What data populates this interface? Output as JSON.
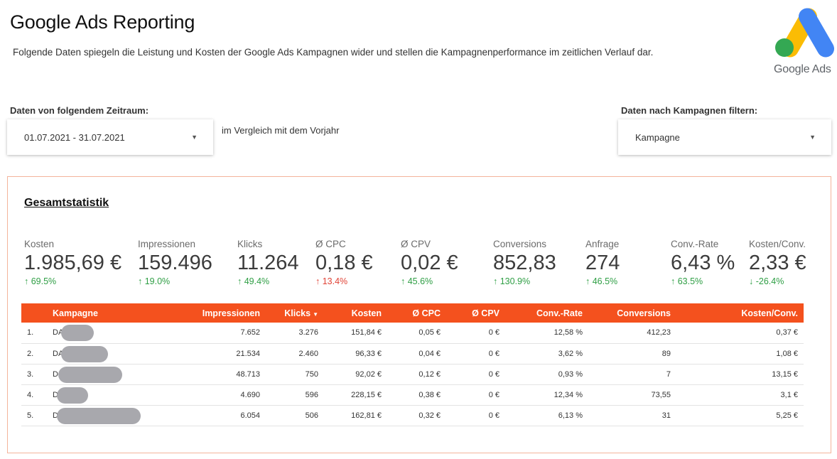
{
  "header": {
    "title": "Google Ads Reporting",
    "subtitle": "Folgende Daten spiegeln die Leistung und Kosten der Google Ads Kampagnen wider und stellen die Kampagnenperformance im zeitlichen Verlauf dar.",
    "logo_text": "Google Ads"
  },
  "controls": {
    "date_label": "Daten von folgendem Zeitraum:",
    "date_value": "01.07.2021 - 31.07.2021",
    "compare_text": "im Vergleich mit dem Vorjahr",
    "campaign_label": "Daten nach Kampagnen filtern:",
    "campaign_value": "Kampagne"
  },
  "stats": {
    "title": "Gesamtstatistik",
    "kpis": [
      {
        "label": "Kosten",
        "value": "1.985,69 €",
        "delta": "↑ 69.5%",
        "trend": "up"
      },
      {
        "label": "Impressionen",
        "value": "159.496",
        "delta": "↑ 19.0%",
        "trend": "up"
      },
      {
        "label": "Klicks",
        "value": "11.264",
        "delta": "↑ 49.4%",
        "trend": "up"
      },
      {
        "label": "Ø CPC",
        "value": "0,18 €",
        "delta": "↑ 13.4%",
        "trend": "down"
      },
      {
        "label": "Ø CPV",
        "value": "0,02 €",
        "delta": "↑ 45.6%",
        "trend": "up"
      },
      {
        "label": "Conversions",
        "value": "852,83",
        "delta": "↑ 130.9%",
        "trend": "up"
      },
      {
        "label": "Anfrage",
        "value": "274",
        "delta": "↑ 46.5%",
        "trend": "up"
      },
      {
        "label": "Conv.-Rate",
        "value": "6,43 %",
        "delta": "↑ 63.5%",
        "trend": "up"
      },
      {
        "label": "Kosten/Conv.",
        "value": "2,33 €",
        "delta": "↓ -26.4%",
        "trend": "up"
      }
    ]
  },
  "table": {
    "columns": [
      "Kampagne",
      "Impressionen",
      "Klicks",
      "Kosten",
      "Ø CPC",
      "Ø CPV",
      "Conv.-Rate",
      "Conversions",
      "Kosten/Conv."
    ],
    "sort_indicator": "▼",
    "rows": [
      {
        "idx": "1.",
        "campaign": "DA",
        "impressions": "7.652",
        "clicks": "3.276",
        "cost": "151,84 €",
        "cpc": "0,05 €",
        "cpv": "0 €",
        "conv_rate": "12,58 %",
        "conversions": "412,23",
        "cost_conv": "0,37 €"
      },
      {
        "idx": "2.",
        "campaign": "DA",
        "impressions": "21.534",
        "clicks": "2.460",
        "cost": "96,33 €",
        "cpc": "0,04 €",
        "cpv": "0 €",
        "conv_rate": "3,62 %",
        "conversions": "89",
        "cost_conv": "1,08 €"
      },
      {
        "idx": "3.",
        "campaign": "D",
        "impressions": "48.713",
        "clicks": "750",
        "cost": "92,02 €",
        "cpc": "0,12 €",
        "cpv": "0 €",
        "conv_rate": "0,93 %",
        "conversions": "7",
        "cost_conv": "13,15 €"
      },
      {
        "idx": "4.",
        "campaign": "D",
        "impressions": "4.690",
        "clicks": "596",
        "cost": "228,15 €",
        "cpc": "0,38 €",
        "cpv": "0 €",
        "conv_rate": "12,34 %",
        "conversions": "73,55",
        "cost_conv": "3,1 €"
      },
      {
        "idx": "5.",
        "campaign": "D",
        "impressions": "6.054",
        "clicks": "506",
        "cost": "162,81 €",
        "cpc": "0,32 €",
        "cpv": "0 €",
        "conv_rate": "6,13 %",
        "conversions": "31",
        "cost_conv": "5,25 €"
      }
    ]
  },
  "colors": {
    "header_bg": "#f4511e",
    "positive": "#2e9e44",
    "negative": "#e04336",
    "panel_border": "#f4b49b",
    "logo_yellow": "#fbbc04",
    "logo_blue": "#4285f4",
    "logo_green": "#34a853"
  },
  "icons": {
    "dropdown": "caret-down-icon",
    "trend_up": "arrow-up-icon",
    "trend_down": "arrow-down-icon",
    "logo": "google-ads-logo"
  }
}
